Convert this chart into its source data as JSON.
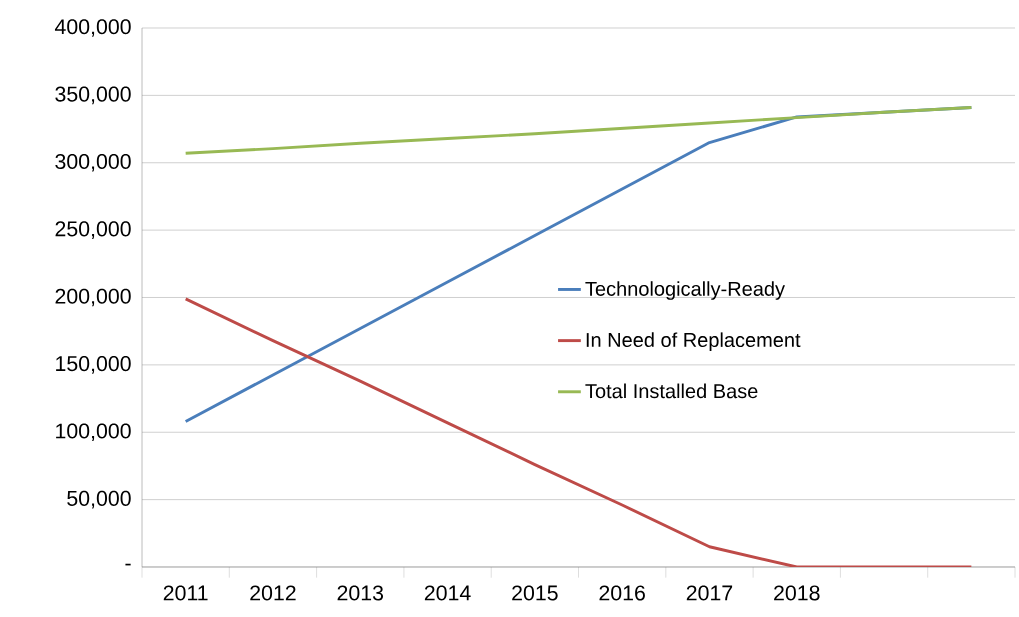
{
  "chart_data": {
    "type": "line",
    "categories": [
      "2011",
      "2012",
      "2013",
      "2014",
      "2015",
      "2016",
      "2017",
      "2018",
      null,
      null
    ],
    "series": [
      {
        "name": "Technologically-Ready",
        "color": "#4a7ebb",
        "values": [
          108000,
          142500,
          177000,
          211500,
          246000,
          280500,
          315000,
          334000,
          337500,
          341000
        ]
      },
      {
        "name": "In Need of Replacement",
        "color": "#be4b48",
        "values": [
          199000,
          168000,
          138000,
          107000,
          76000,
          46000,
          15000,
          0,
          0,
          0
        ]
      },
      {
        "name": "Total Installed Base",
        "color": "#98b954",
        "values": [
          307000,
          310500,
          314500,
          318000,
          321500,
          325500,
          329500,
          333500,
          337500,
          341000
        ]
      }
    ],
    "ylim": [
      0,
      400000
    ],
    "yticks": [
      {
        "value": 0,
        "label": "-"
      },
      {
        "value": 50000,
        "label": "50,000"
      },
      {
        "value": 100000,
        "label": "100,000"
      },
      {
        "value": 150000,
        "label": "150,000"
      },
      {
        "value": 200000,
        "label": "200,000"
      },
      {
        "value": 250000,
        "label": "250,000"
      },
      {
        "value": 300000,
        "label": "300,000"
      },
      {
        "value": 350000,
        "label": "350,000"
      },
      {
        "value": 400000,
        "label": "400,000"
      }
    ],
    "grid": "y",
    "legend": "right",
    "marker": "none",
    "line_style": "solid"
  }
}
